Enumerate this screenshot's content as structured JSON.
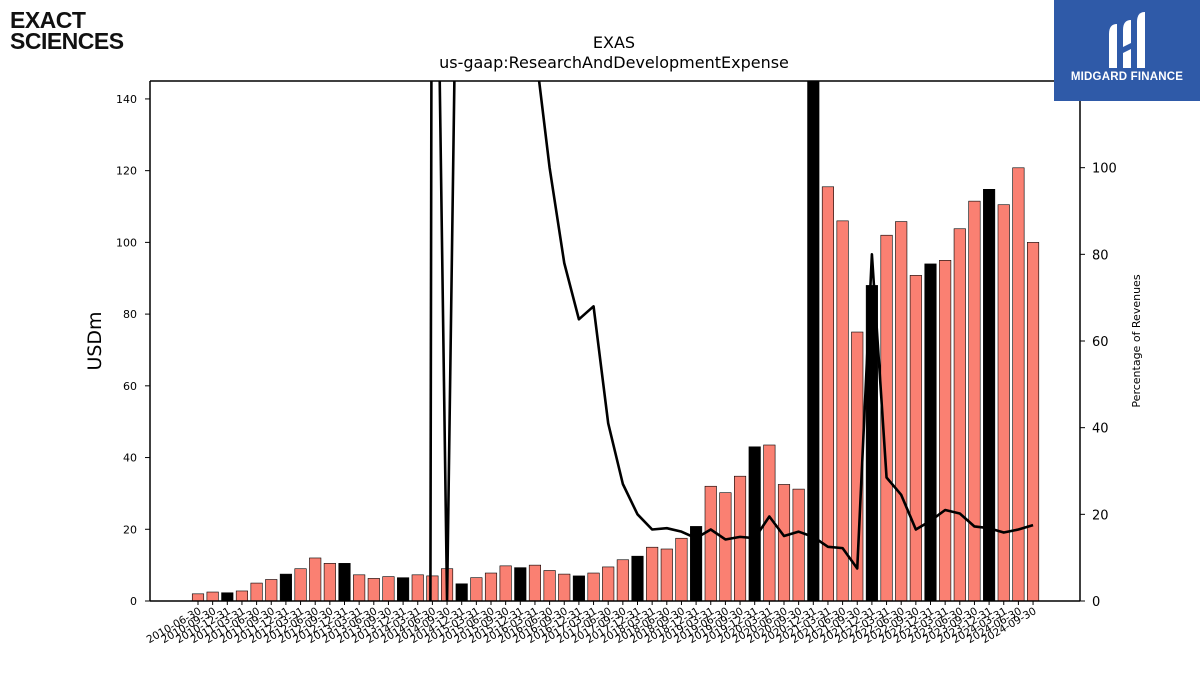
{
  "logos": {
    "company_line1": "EXACT",
    "company_line2": "SCIENCES",
    "brand": "MIDGARD FINANCE"
  },
  "colors": {
    "bar_main": "#fa8072",
    "bar_q4": "#000000",
    "line": "#000000",
    "brand_bg": "#2f5aa8"
  },
  "chart_data": {
    "type": "bar",
    "title": "EXAS",
    "subtitle": "us-gaap:ResearchAndDevelopmentExpense",
    "ylabel": "USDm",
    "y2label": "Percentage of Revenues",
    "ylim": [
      0,
      145
    ],
    "y2lim": [
      0,
      100
    ],
    "yticks": [
      0,
      20,
      40,
      60,
      80,
      100,
      120,
      140
    ],
    "y2ticks": [
      0,
      20,
      40,
      60,
      80,
      100
    ],
    "grid": false,
    "categories": [
      "2010-06-30",
      "2010-09-30",
      "2010-12-31",
      "2011-03-31",
      "2011-06-30",
      "2011-09-30",
      "2011-12-31",
      "2012-03-31",
      "2012-06-30",
      "2012-09-30",
      "2012-12-31",
      "2013-03-31",
      "2013-06-30",
      "2013-09-30",
      "2013-12-31",
      "2014-03-31",
      "2014-06-30",
      "2014-09-30",
      "2014-12-31",
      "2015-03-31",
      "2015-06-30",
      "2015-09-30",
      "2015-12-31",
      "2016-03-31",
      "2016-06-30",
      "2016-09-30",
      "2016-12-31",
      "2017-03-31",
      "2017-06-30",
      "2017-09-30",
      "2017-12-31",
      "2018-03-31",
      "2018-06-30",
      "2018-09-30",
      "2018-12-31",
      "2019-03-31",
      "2019-06-30",
      "2019-09-30",
      "2019-12-31",
      "2020-03-31",
      "2020-06-30",
      "2020-09-30",
      "2020-12-31",
      "2021-03-31",
      "2021-06-30",
      "2021-09-30",
      "2021-12-31",
      "2022-03-31",
      "2022-06-30",
      "2022-09-30",
      "2022-12-31",
      "2023-03-31",
      "2023-06-30",
      "2023-09-30",
      "2023-12-31",
      "2024-03-31",
      "2024-06-30",
      "2024-09-30"
    ],
    "series": [
      {
        "values": [
          2.0,
          2.5,
          2.3,
          2.8,
          5.0,
          6.0,
          7.5,
          9.0,
          12.0,
          10.5,
          10.5,
          7.3,
          6.3,
          6.8,
          6.5,
          7.3,
          7.0,
          9.0,
          4.8,
          6.5,
          7.8,
          9.8,
          9.3,
          10.0,
          8.5,
          7.5,
          7.0,
          7.8,
          9.5,
          11.5,
          12.5,
          15.0,
          14.5,
          17.5,
          20.8,
          32.0,
          30.2,
          34.8,
          43.0,
          43.5,
          32.5,
          31.2,
          145.0,
          115.5,
          106.0,
          75.0,
          88.0,
          102.0,
          105.8,
          90.8,
          94.0,
          95.0,
          103.8,
          111.5,
          114.8,
          110.5,
          120.8,
          100.0
        ],
        "q4_highlight": true
      },
      {
        "name": "Percentage of Revenues",
        "axis": "right",
        "values": [
          null,
          null,
          null,
          null,
          null,
          null,
          null,
          null,
          null,
          null,
          null,
          null,
          null,
          null,
          null,
          null,
          100,
          100,
          100,
          100,
          100,
          100,
          100,
          100,
          100,
          100,
          100,
          100,
          100,
          100,
          100,
          100,
          100,
          100,
          100,
          100,
          100,
          100,
          100,
          100,
          100,
          100,
          100,
          100,
          100,
          100,
          100,
          100,
          100,
          100,
          100,
          100,
          100,
          100,
          100,
          100,
          100,
          100
        ],
        "points": [
          {
            "x": "2016-06-30",
            "y": 100.0
          },
          {
            "x": "2016-09-30",
            "y": 78.0
          },
          {
            "x": "2016-12-31",
            "y": 65.0
          },
          {
            "x": "2017-03-31",
            "y": 68.0
          },
          {
            "x": "2017-06-30",
            "y": 41.0
          },
          {
            "x": "2017-09-30",
            "y": 27.0
          },
          {
            "x": "2017-12-31",
            "y": 20.0
          },
          {
            "x": "2018-03-31",
            "y": 16.5
          },
          {
            "x": "2018-06-30",
            "y": 16.8
          },
          {
            "x": "2018-09-30",
            "y": 16.0
          },
          {
            "x": "2018-12-31",
            "y": 14.5
          },
          {
            "x": "2019-03-31",
            "y": 16.5
          },
          {
            "x": "2019-06-30",
            "y": 14.2
          },
          {
            "x": "2019-09-30",
            "y": 14.8
          },
          {
            "x": "2019-12-31",
            "y": 14.5
          },
          {
            "x": "2020-03-31",
            "y": 19.5
          },
          {
            "x": "2020-06-30",
            "y": 15.0
          },
          {
            "x": "2020-09-30",
            "y": 16.0
          },
          {
            "x": "2020-12-31",
            "y": 14.8
          },
          {
            "x": "2021-03-31",
            "y": 12.5
          },
          {
            "x": "2021-06-30",
            "y": 12.2
          },
          {
            "x": "2021-09-30",
            "y": 7.5
          },
          {
            "x": "2021-12-31",
            "y": 80.0
          },
          {
            "x": "2022-03-31",
            "y": 28.5
          },
          {
            "x": "2022-06-30",
            "y": 24.5
          },
          {
            "x": "2022-09-30",
            "y": 16.5
          },
          {
            "x": "2022-12-31",
            "y": 18.5
          },
          {
            "x": "2023-03-31",
            "y": 21.0
          },
          {
            "x": "2023-06-30",
            "y": 20.2
          },
          {
            "x": "2023-09-30",
            "y": 17.2
          },
          {
            "x": "2023-12-31",
            "y": 16.8
          },
          {
            "x": "2024-03-31",
            "y": 15.8
          },
          {
            "x": "2024-06-30",
            "y": 16.5
          },
          {
            "x": "2024-09-30",
            "y": 17.5
          },
          {
            "x": "2024-12-31",
            "y": 17.5
          },
          {
            "x": "2025-03-31",
            "y": 17.2
          },
          {
            "x": "2025-06-30",
            "y": 17.0
          },
          {
            "x": "2025-09-30",
            "y": 13.8
          }
        ],
        "spikes": [
          {
            "x": "2014-06-30",
            "y": 240
          },
          {
            "x": "2014-09-30",
            "y": 0
          },
          {
            "x": "2014-12-31",
            "y": 240
          }
        ]
      }
    ]
  }
}
